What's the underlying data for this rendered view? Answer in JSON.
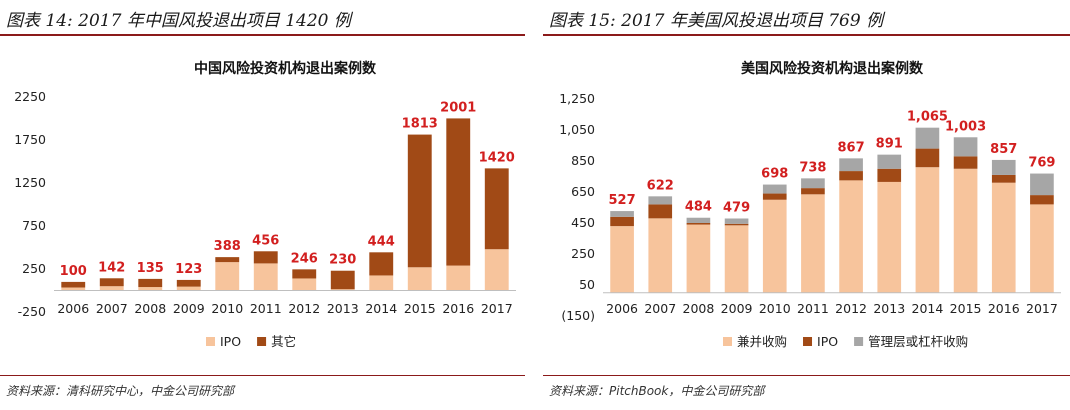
{
  "colors": {
    "accent": "#8b1a1a",
    "ma": "#f7c49c",
    "ipo": "#a14a16",
    "other": "#a14a16",
    "mbo": "#a6a6a6",
    "label": "#d21f1f"
  },
  "left": {
    "figure_title": "图表 14: 2017 年中国风投退出项目 1420 例",
    "source": "资料来源：清科研究中心，中金公司研究部"
  },
  "right": {
    "figure_title": "图表 15: 2017 年美国风投退出项目 769 例",
    "source": "资料来源：PitchBook，中金公司研究部"
  },
  "chart_data": [
    {
      "type": "bar",
      "stacked": true,
      "title": "中国风险投资机构退出案例数",
      "categories": [
        "2006",
        "2007",
        "2008",
        "2009",
        "2010",
        "2011",
        "2012",
        "2013",
        "2014",
        "2015",
        "2016",
        "2017"
      ],
      "series": [
        {
          "name": "IPO",
          "values": [
            35,
            50,
            40,
            45,
            330,
            315,
            140,
            15,
            175,
            270,
            290,
            480
          ]
        },
        {
          "name": "其它",
          "values": [
            65,
            92,
            95,
            78,
            58,
            141,
            106,
            215,
            269,
            1543,
            1711,
            940
          ]
        }
      ],
      "totals": [
        100,
        142,
        135,
        123,
        388,
        456,
        246,
        230,
        444,
        1813,
        2001,
        1420
      ],
      "total_labels": [
        "100",
        "142",
        "135",
        "123",
        "388",
        "456",
        "246",
        "230",
        "444",
        "1813",
        "2001",
        "1420"
      ],
      "ylim": [
        -250,
        2250
      ],
      "yticks": [
        -250,
        250,
        750,
        1250,
        1750,
        2250
      ],
      "ytick_labels": [
        "-250",
        "250",
        "750",
        "1250",
        "1750",
        "2250"
      ],
      "legend_position": "bottom"
    },
    {
      "type": "bar",
      "stacked": true,
      "title": "美国风险投资机构退出案例数",
      "categories": [
        "2006",
        "2007",
        "2008",
        "2009",
        "2010",
        "2011",
        "2012",
        "2013",
        "2014",
        "2015",
        "2016",
        "2017"
      ],
      "series": [
        {
          "name": "兼并收购",
          "values": [
            430,
            480,
            440,
            435,
            600,
            635,
            725,
            715,
            810,
            800,
            710,
            570
          ]
        },
        {
          "name": "IPO",
          "values": [
            60,
            90,
            10,
            10,
            40,
            40,
            60,
            85,
            120,
            80,
            50,
            60
          ]
        },
        {
          "name": "管理层或杠杆收购",
          "values": [
            37,
            52,
            34,
            34,
            58,
            63,
            82,
            91,
            135,
            123,
            97,
            139
          ]
        }
      ],
      "totals": [
        527,
        622,
        484,
        479,
        698,
        738,
        867,
        891,
        1065,
        1003,
        857,
        769
      ],
      "total_labels": [
        "527",
        "622",
        "484",
        "479",
        "698",
        "738",
        "867",
        "891",
        "1,065",
        "1,003",
        "857",
        "769"
      ],
      "ylim": [
        -150,
        1250
      ],
      "yticks": [
        -150,
        50,
        250,
        450,
        650,
        850,
        1050,
        1250
      ],
      "ytick_labels": [
        "(150)",
        "50",
        "250",
        "450",
        "650",
        "850",
        "1,050",
        "1,250"
      ],
      "legend_position": "bottom"
    }
  ]
}
